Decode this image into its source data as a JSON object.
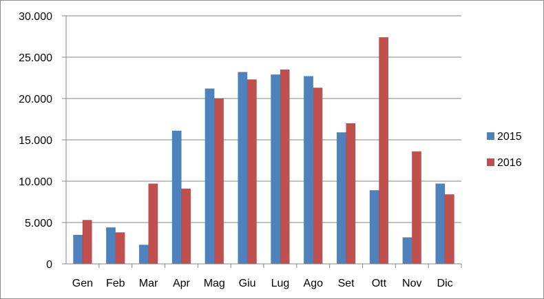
{
  "chart_data": {
    "type": "bar",
    "categories": [
      "Gen",
      "Feb",
      "Mar",
      "Apr",
      "Mag",
      "Giu",
      "Lug",
      "Ago",
      "Set",
      "Ott",
      "Nov",
      "Dic"
    ],
    "series": [
      {
        "name": "2015",
        "color": "#4f81bd",
        "values": [
          3500,
          4400,
          2300,
          16100,
          21200,
          23200,
          22900,
          22700,
          15900,
          8900,
          3200,
          9700
        ]
      },
      {
        "name": "2016",
        "color": "#c0504d",
        "values": [
          5300,
          3800,
          9700,
          9100,
          20000,
          22300,
          23500,
          21300,
          17000,
          27400,
          13600,
          8400
        ]
      }
    ],
    "yticks": [
      "0",
      "5.000",
      "10.000",
      "15.000",
      "20.000",
      "25.000",
      "30.000"
    ],
    "ylim": [
      0,
      30000
    ],
    "grid": "horizontal",
    "legend_position": "right"
  }
}
